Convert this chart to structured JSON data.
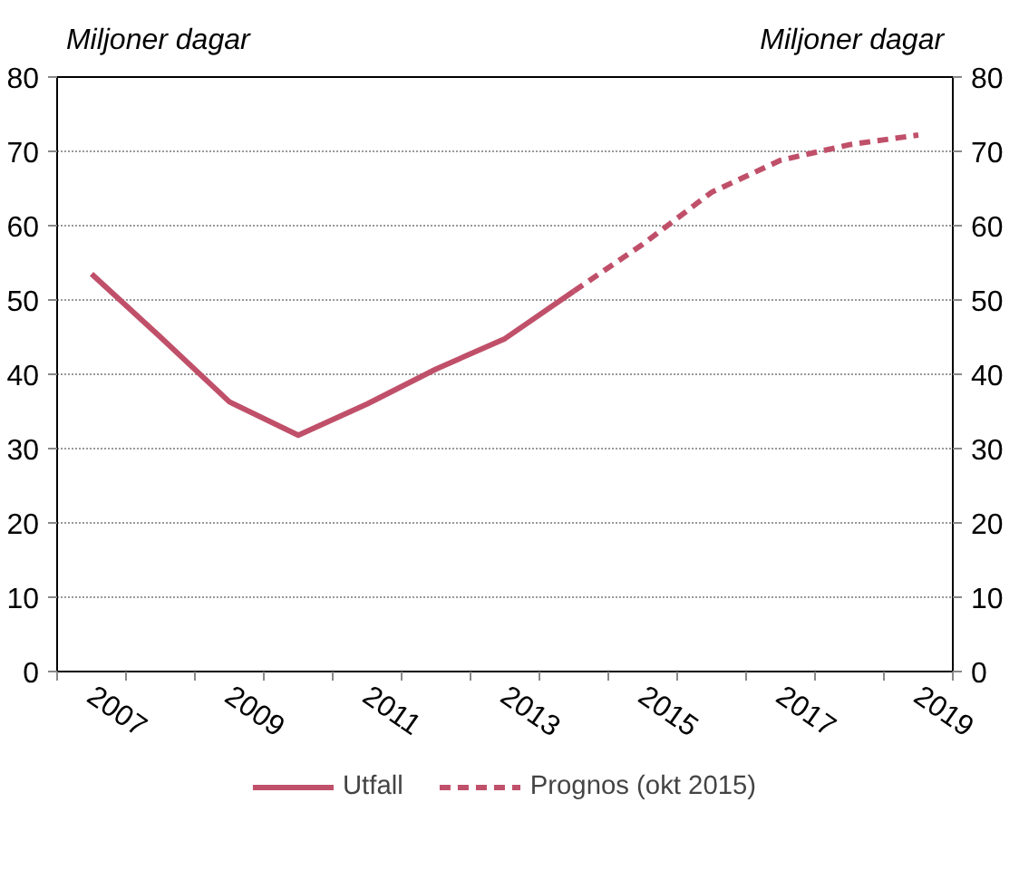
{
  "chart_data": {
    "type": "line",
    "ylabel": "Miljoner dagar",
    "y2label": "Miljoner dagar",
    "categories": [
      "2007",
      null,
      "2009",
      null,
      "2011",
      null,
      "2013",
      null,
      "2015",
      null,
      "2017",
      null,
      "2019"
    ],
    "series": [
      {
        "name": "Utfall",
        "color": "#c0506a",
        "line_style": "solid",
        "values": [
          53.5,
          45,
          36.3,
          31.8,
          36,
          40.7,
          44.8,
          51.2,
          null,
          null,
          null,
          null,
          null
        ]
      },
      {
        "name": "Prognos (okt 2015)",
        "color": "#c0506a",
        "line_style": "dashed",
        "values": [
          null,
          null,
          null,
          null,
          null,
          null,
          null,
          51.2,
          57.5,
          64.5,
          68.8,
          70.9,
          72.2
        ]
      }
    ],
    "ylim": [
      0,
      80
    ],
    "yticks": [
      0,
      10,
      20,
      30,
      40,
      50,
      60,
      70,
      80
    ],
    "y2lim": [
      0,
      80
    ],
    "y2ticks": [
      0,
      10,
      20,
      30,
      40,
      50,
      60,
      70,
      80
    ],
    "grid": "y",
    "legend": "bottom",
    "marker": "none"
  }
}
